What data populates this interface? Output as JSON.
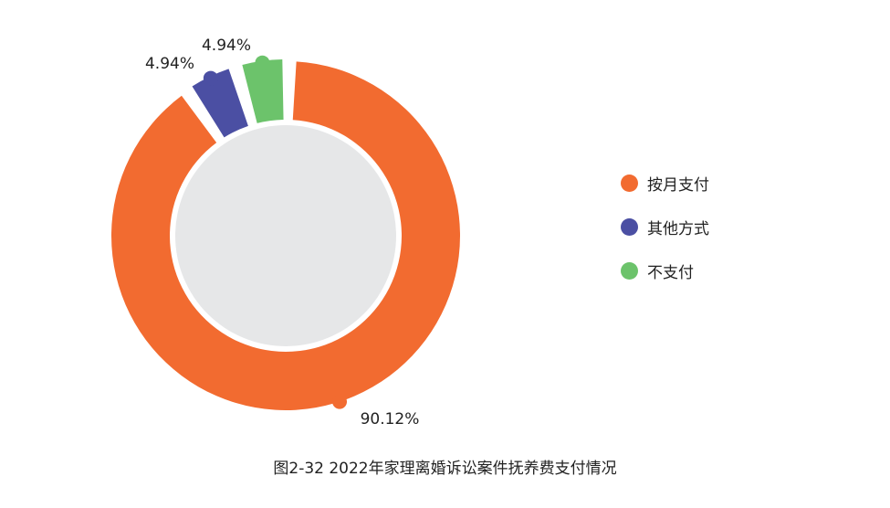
{
  "chart_data": {
    "type": "pie",
    "donut": true,
    "title": "图2-32  2022年家理离婚诉讼案件抚养费支付情况",
    "slices": [
      {
        "label": "按月支付",
        "value": 90.12,
        "display": "90.12%",
        "color": "#F26B30"
      },
      {
        "label": "其他方式",
        "value": 4.94,
        "display": "4.94%",
        "color": "#4B4FA3"
      },
      {
        "label": "不支付",
        "value": 4.94,
        "display": "4.94%",
        "color": "#6CC36B"
      }
    ],
    "legend_position": "right",
    "inner_circle_color": "#E6E7E8"
  }
}
